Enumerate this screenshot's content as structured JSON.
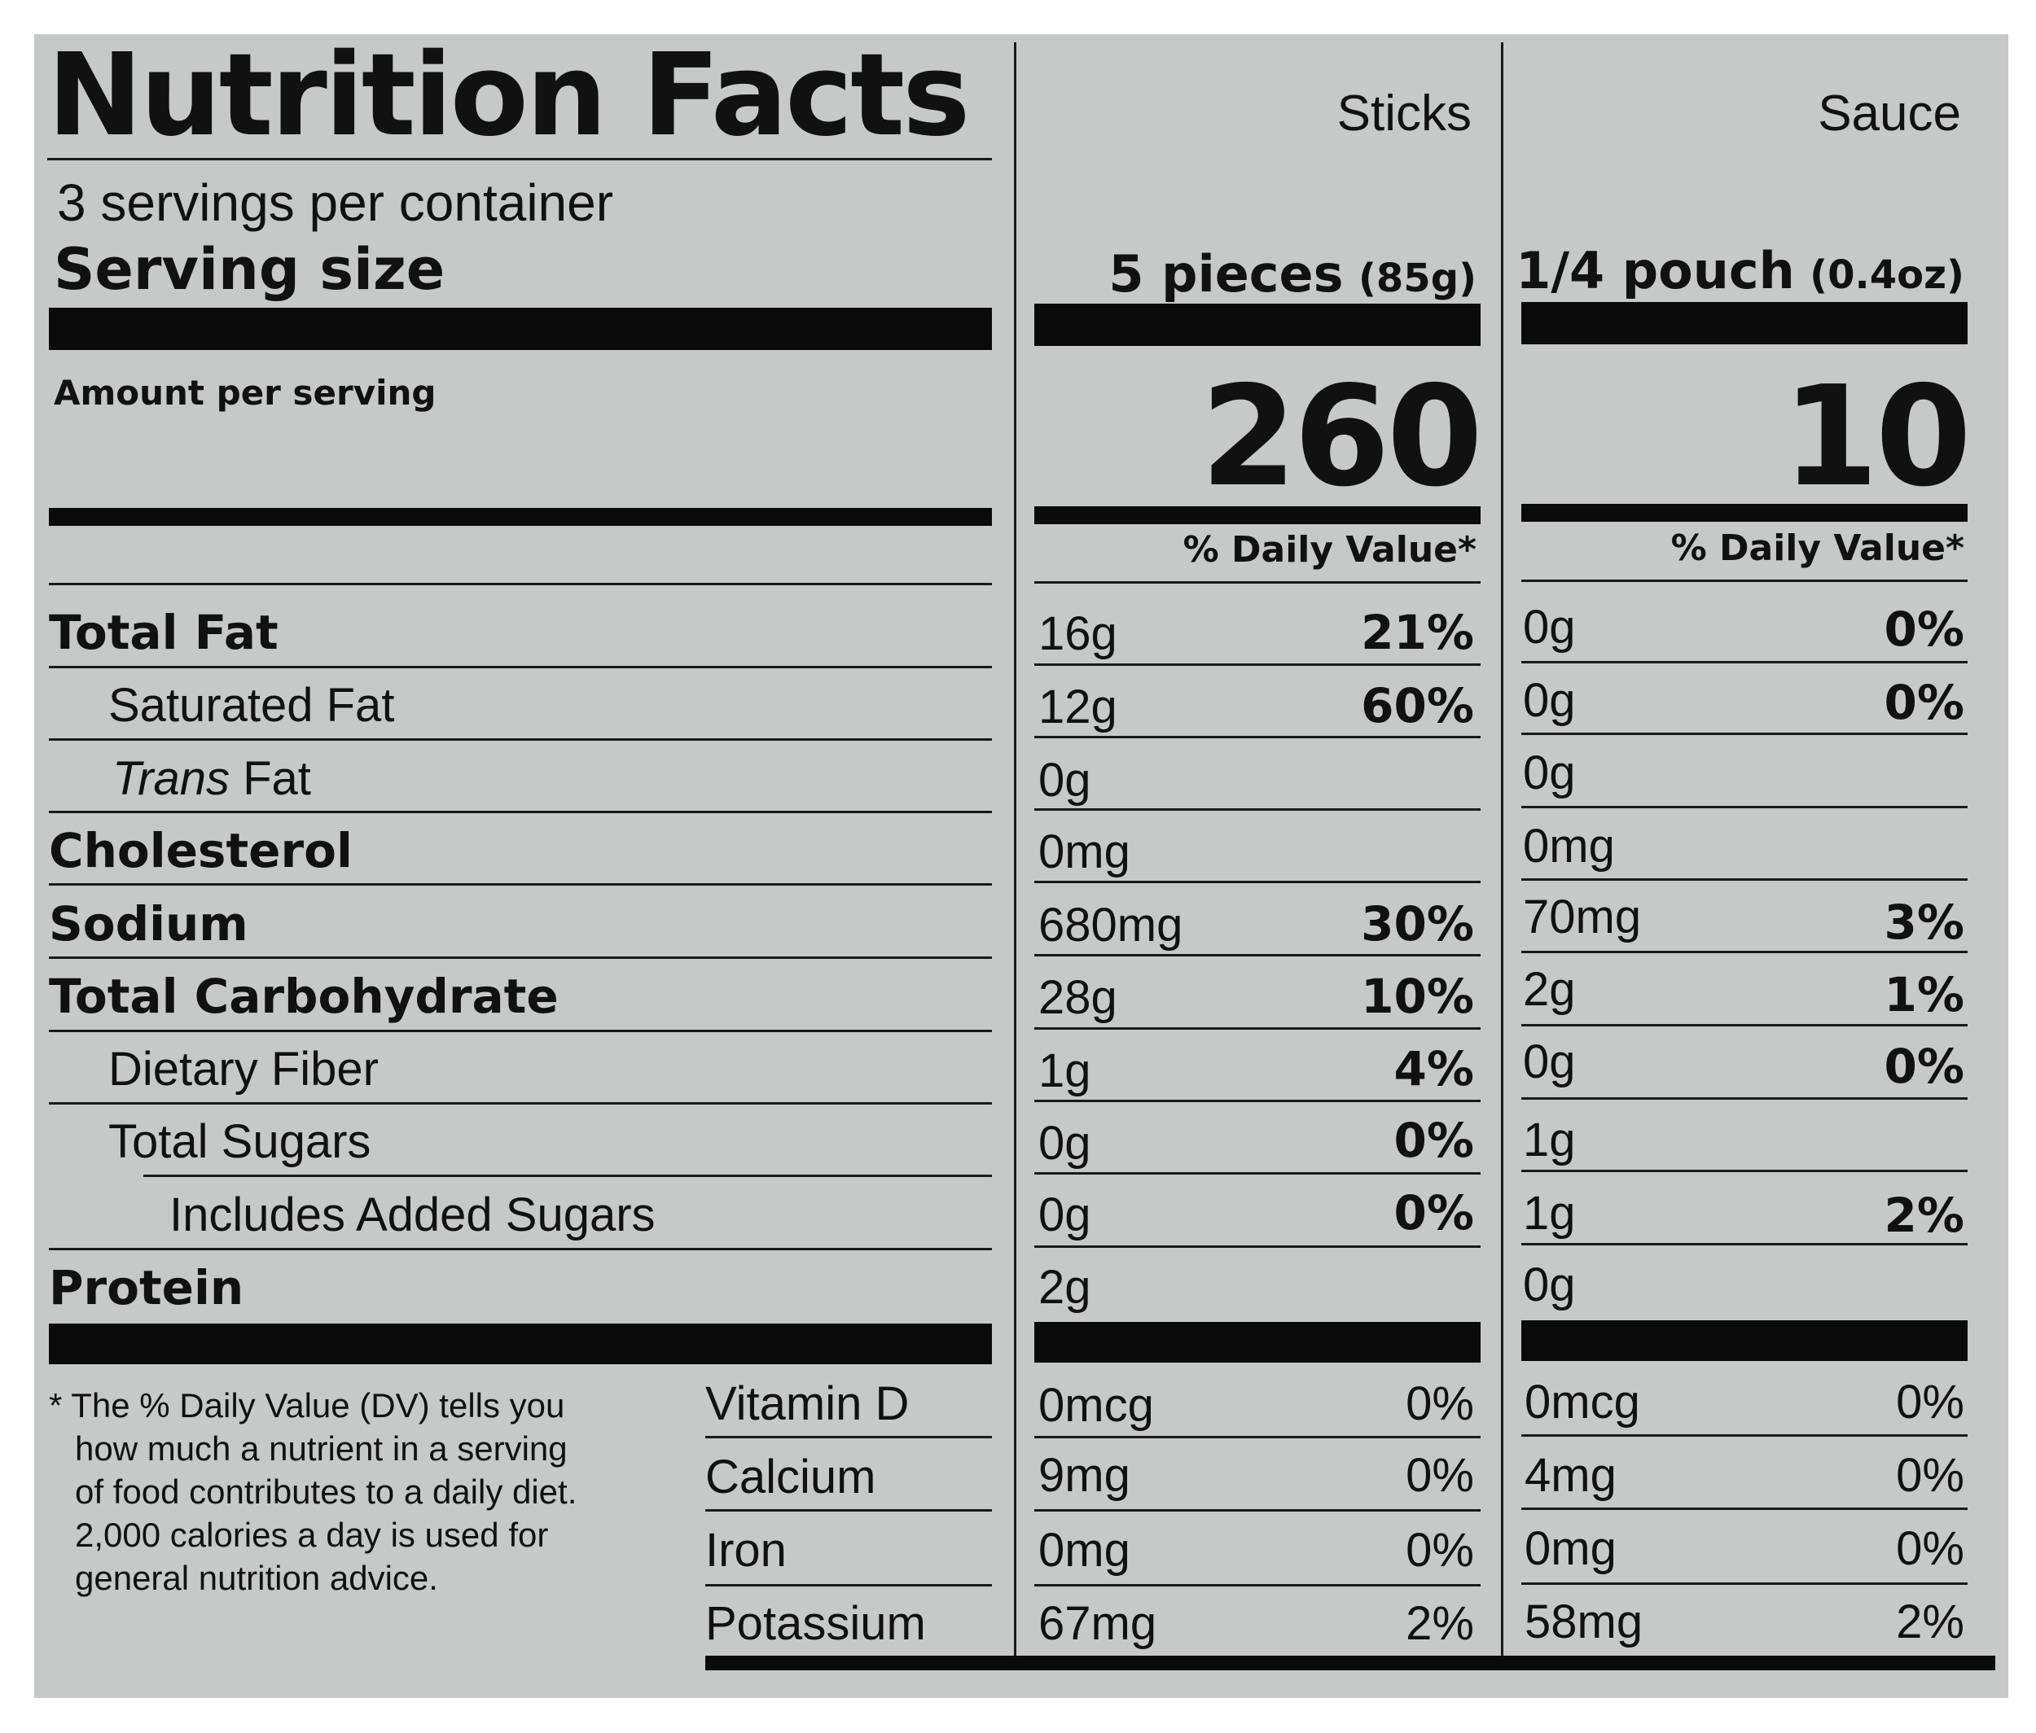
{
  "title": "Nutrition Facts",
  "columns": [
    {
      "label": "Sticks",
      "serving_qty": "5 pieces",
      "serving_weight": "(85g)",
      "calories": "260",
      "dv_header": "% Daily Value*"
    },
    {
      "label": "Sauce",
      "serving_qty": "1/4 pouch",
      "serving_weight": "(0.4oz)",
      "calories": "10",
      "dv_header": "% Daily Value*"
    }
  ],
  "servings_per_container": "3 servings per container",
  "serving_size_label": "Serving size",
  "amount_per_serving": "Amount per serving",
  "nutrients": [
    {
      "name": "Total Fat",
      "sticks": "16g",
      "sticks_dv": "21%",
      "sauce": "0g",
      "sauce_dv": "0%"
    },
    {
      "name": "Saturated Fat",
      "sticks": "12g",
      "sticks_dv": "60%",
      "sauce": "0g",
      "sauce_dv": "0%"
    },
    {
      "name_italic": "Trans",
      "name_rest": " Fat",
      "sticks": "0g",
      "sticks_dv": "",
      "sauce": "0g",
      "sauce_dv": ""
    },
    {
      "name": "Cholesterol",
      "sticks": "0mg",
      "sticks_dv": "",
      "sauce": "0mg",
      "sauce_dv": ""
    },
    {
      "name": "Sodium",
      "sticks": "680mg",
      "sticks_dv": "30%",
      "sauce": "70mg",
      "sauce_dv": "3%"
    },
    {
      "name": "Total Carbohydrate",
      "sticks": "28g",
      "sticks_dv": "10%",
      "sauce": "2g",
      "sauce_dv": "1%"
    },
    {
      "name": "Dietary Fiber",
      "sticks": "1g",
      "sticks_dv": "4%",
      "sauce": "0g",
      "sauce_dv": "0%"
    },
    {
      "name": "Total Sugars",
      "sticks": "0g",
      "sticks_dv": "0%",
      "sauce": "1g",
      "sauce_dv": ""
    },
    {
      "name": "Includes Added Sugars",
      "sticks": "0g",
      "sticks_dv": "0%",
      "sauce": "1g",
      "sauce_dv": "2%"
    },
    {
      "name": "Protein",
      "sticks": "2g",
      "sticks_dv": "",
      "sauce": "0g",
      "sauce_dv": ""
    }
  ],
  "vitamins": [
    {
      "name": "Vitamin D",
      "sticks": "0mcg",
      "sticks_dv": "0%",
      "sauce": "0mcg",
      "sauce_dv": "0%"
    },
    {
      "name": "Calcium",
      "sticks": "9mg",
      "sticks_dv": "0%",
      "sauce": "4mg",
      "sauce_dv": "0%"
    },
    {
      "name": "Iron",
      "sticks": "0mg",
      "sticks_dv": "0%",
      "sauce": "0mg",
      "sauce_dv": "0%"
    },
    {
      "name": "Potassium",
      "sticks": "67mg",
      "sticks_dv": "2%",
      "sauce": "58mg",
      "sauce_dv": "2%"
    }
  ],
  "footnote_lines": [
    "* The % Daily Value (DV) tells you",
    "how much a nutrient in a serving",
    "of food contributes to a daily diet.",
    "2,000 calories a day is used for",
    "general nutrition advice."
  ]
}
